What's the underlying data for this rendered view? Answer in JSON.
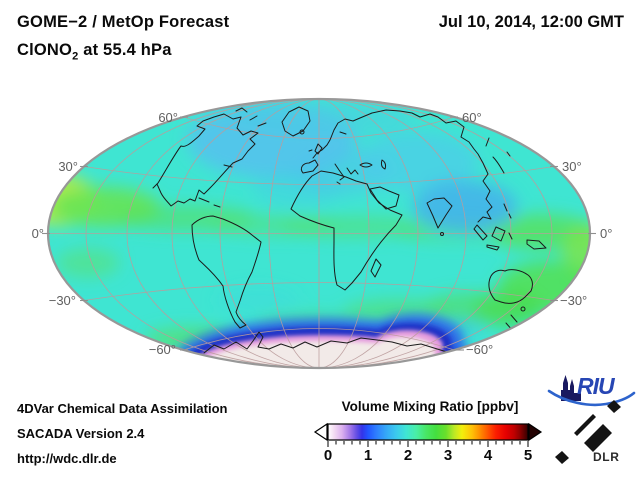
{
  "header": {
    "title_line1": "GOME−2 / MetOp Forecast",
    "species": "ClONO",
    "species_sub": "2",
    "species_suffix": " at 55.4 hPa",
    "datetime": "Jul 10, 2014, 12:00 GMT"
  },
  "map": {
    "projection": "Hammer ellipse world map",
    "lat_left": [
      "60°",
      "30°",
      "0°",
      "−30°",
      "−60°"
    ],
    "lat_right": [
      "60°",
      "30°",
      "0°",
      "−30°",
      "−60°"
    ],
    "palette": {
      "background_field": "#3fe5d2",
      "subtropical_band": "#5ae05c",
      "high_lat_blue": "#52c0ee",
      "antarctic_interior": "#f2eae8",
      "antarctic_pink_ring": "#e79ede",
      "antarctic_blue_ring": "#1e2fc4",
      "graticule": "#bb9c9c",
      "coastline": "#1b1b1b"
    }
  },
  "colorbar": {
    "title": "Volume Mixing Ratio [ppbv]",
    "min": 0,
    "max": 5,
    "minor_tick_step": 0.2,
    "tick_labels": [
      "0",
      "1",
      "2",
      "3",
      "4",
      "5"
    ],
    "gradient": [
      {
        "v": 0.0,
        "c": "#ffffff"
      },
      {
        "v": 0.15,
        "c": "#f3dcf3"
      },
      {
        "v": 0.35,
        "c": "#dcb1ef"
      },
      {
        "v": 0.55,
        "c": "#a478e8"
      },
      {
        "v": 0.7,
        "c": "#6a52e4"
      },
      {
        "v": 0.85,
        "c": "#3333e8"
      },
      {
        "v": 1.0,
        "c": "#2255ff"
      },
      {
        "v": 1.2,
        "c": "#2e7dff"
      },
      {
        "v": 1.45,
        "c": "#35a7f7"
      },
      {
        "v": 1.7,
        "c": "#3bc9ee"
      },
      {
        "v": 1.95,
        "c": "#3fe5d4"
      },
      {
        "v": 2.2,
        "c": "#49efa8"
      },
      {
        "v": 2.45,
        "c": "#48e766"
      },
      {
        "v": 2.7,
        "c": "#44df3f"
      },
      {
        "v": 2.95,
        "c": "#6ae02b"
      },
      {
        "v": 3.15,
        "c": "#b9e926"
      },
      {
        "v": 3.35,
        "c": "#f2ef0c"
      },
      {
        "v": 3.6,
        "c": "#ffc107"
      },
      {
        "v": 3.8,
        "c": "#ff8d00"
      },
      {
        "v": 4.0,
        "c": "#ff5400"
      },
      {
        "v": 4.2,
        "c": "#fb1d00"
      },
      {
        "v": 4.45,
        "c": "#e60000"
      },
      {
        "v": 4.65,
        "c": "#c00000"
      },
      {
        "v": 4.8,
        "c": "#8d0000"
      },
      {
        "v": 4.95,
        "c": "#4a0000"
      },
      {
        "v": 5.0,
        "c": "#300000"
      }
    ]
  },
  "footer": {
    "line1": "4DVar Chemical Data Assimilation",
    "line2": "SACADA Version 2.4",
    "line3": "http://wdc.dlr.de"
  },
  "logos": {
    "riu_text": "RIU",
    "dlr_text": "DLR"
  }
}
